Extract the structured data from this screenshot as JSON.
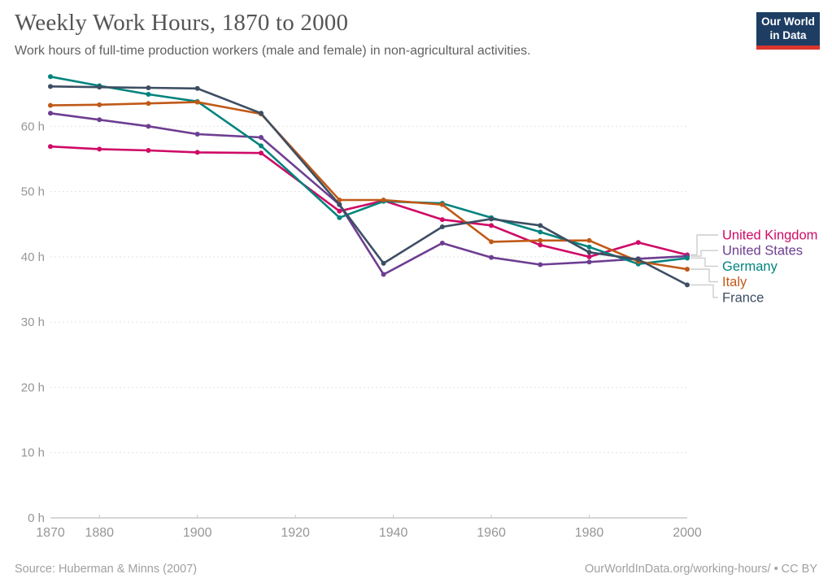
{
  "header": {
    "title": "Weekly Work Hours, 1870 to 2000",
    "subtitle": "Work hours of full-time production workers (male and female) in non-agricultural activities.",
    "logo": {
      "line1": "Our World",
      "line2": "in Data",
      "bg_color": "#1d3d63",
      "accent_color": "#dc352c"
    }
  },
  "footer": {
    "source": "Source: Huberman & Minns (2007)",
    "attribution": "OurWorldInData.org/working-hours/ • CC BY"
  },
  "chart_data": {
    "type": "line",
    "title": "Weekly Work Hours, 1870 to 2000",
    "xlabel": "",
    "ylabel": "",
    "x": [
      1870,
      1880,
      1890,
      1900,
      1913,
      1929,
      1938,
      1950,
      1960,
      1970,
      1980,
      1990,
      2000
    ],
    "series": [
      {
        "name": "United Kingdom",
        "color": "#CF0A66",
        "values": [
          56.9,
          56.5,
          56.3,
          56.0,
          55.9,
          47.0,
          48.6,
          45.7,
          44.8,
          41.8,
          40.0,
          42.2,
          40.3
        ]
      },
      {
        "name": "United States",
        "color": "#6D3E91",
        "values": [
          62.0,
          61.0,
          60.0,
          58.8,
          58.3,
          48.0,
          37.3,
          42.1,
          39.9,
          38.8,
          39.2,
          39.7,
          40.1
        ]
      },
      {
        "name": "Germany",
        "color": "#00847E",
        "values": [
          67.6,
          66.2,
          64.9,
          63.8,
          57.0,
          46.0,
          48.5,
          48.2,
          46.0,
          43.8,
          41.5,
          38.9,
          39.8
        ]
      },
      {
        "name": "Italy",
        "color": "#C05917",
        "values": [
          63.2,
          63.3,
          63.5,
          63.7,
          61.9,
          48.7,
          48.7,
          48.0,
          42.3,
          42.5,
          42.5,
          39.3,
          38.1
        ]
      },
      {
        "name": "France",
        "color": "#3D4E63",
        "values": [
          66.1,
          66.0,
          65.9,
          65.8,
          62.0,
          48.0,
          39.0,
          44.6,
          45.8,
          44.8,
          40.7,
          39.6,
          35.7
        ]
      }
    ],
    "xlim": [
      1870,
      2000
    ],
    "ylim": [
      0,
      70
    ],
    "yticks": [
      0,
      10,
      20,
      30,
      40,
      50,
      60
    ],
    "ytick_suffix": " h",
    "xticks": [
      1870,
      1880,
      1900,
      1920,
      1940,
      1960,
      1980,
      2000
    ],
    "grid": "horizontal-dashed",
    "legend_position": "right-of-line-endpoints",
    "legend_order": [
      "United Kingdom",
      "United States",
      "Germany",
      "Italy",
      "France"
    ]
  }
}
